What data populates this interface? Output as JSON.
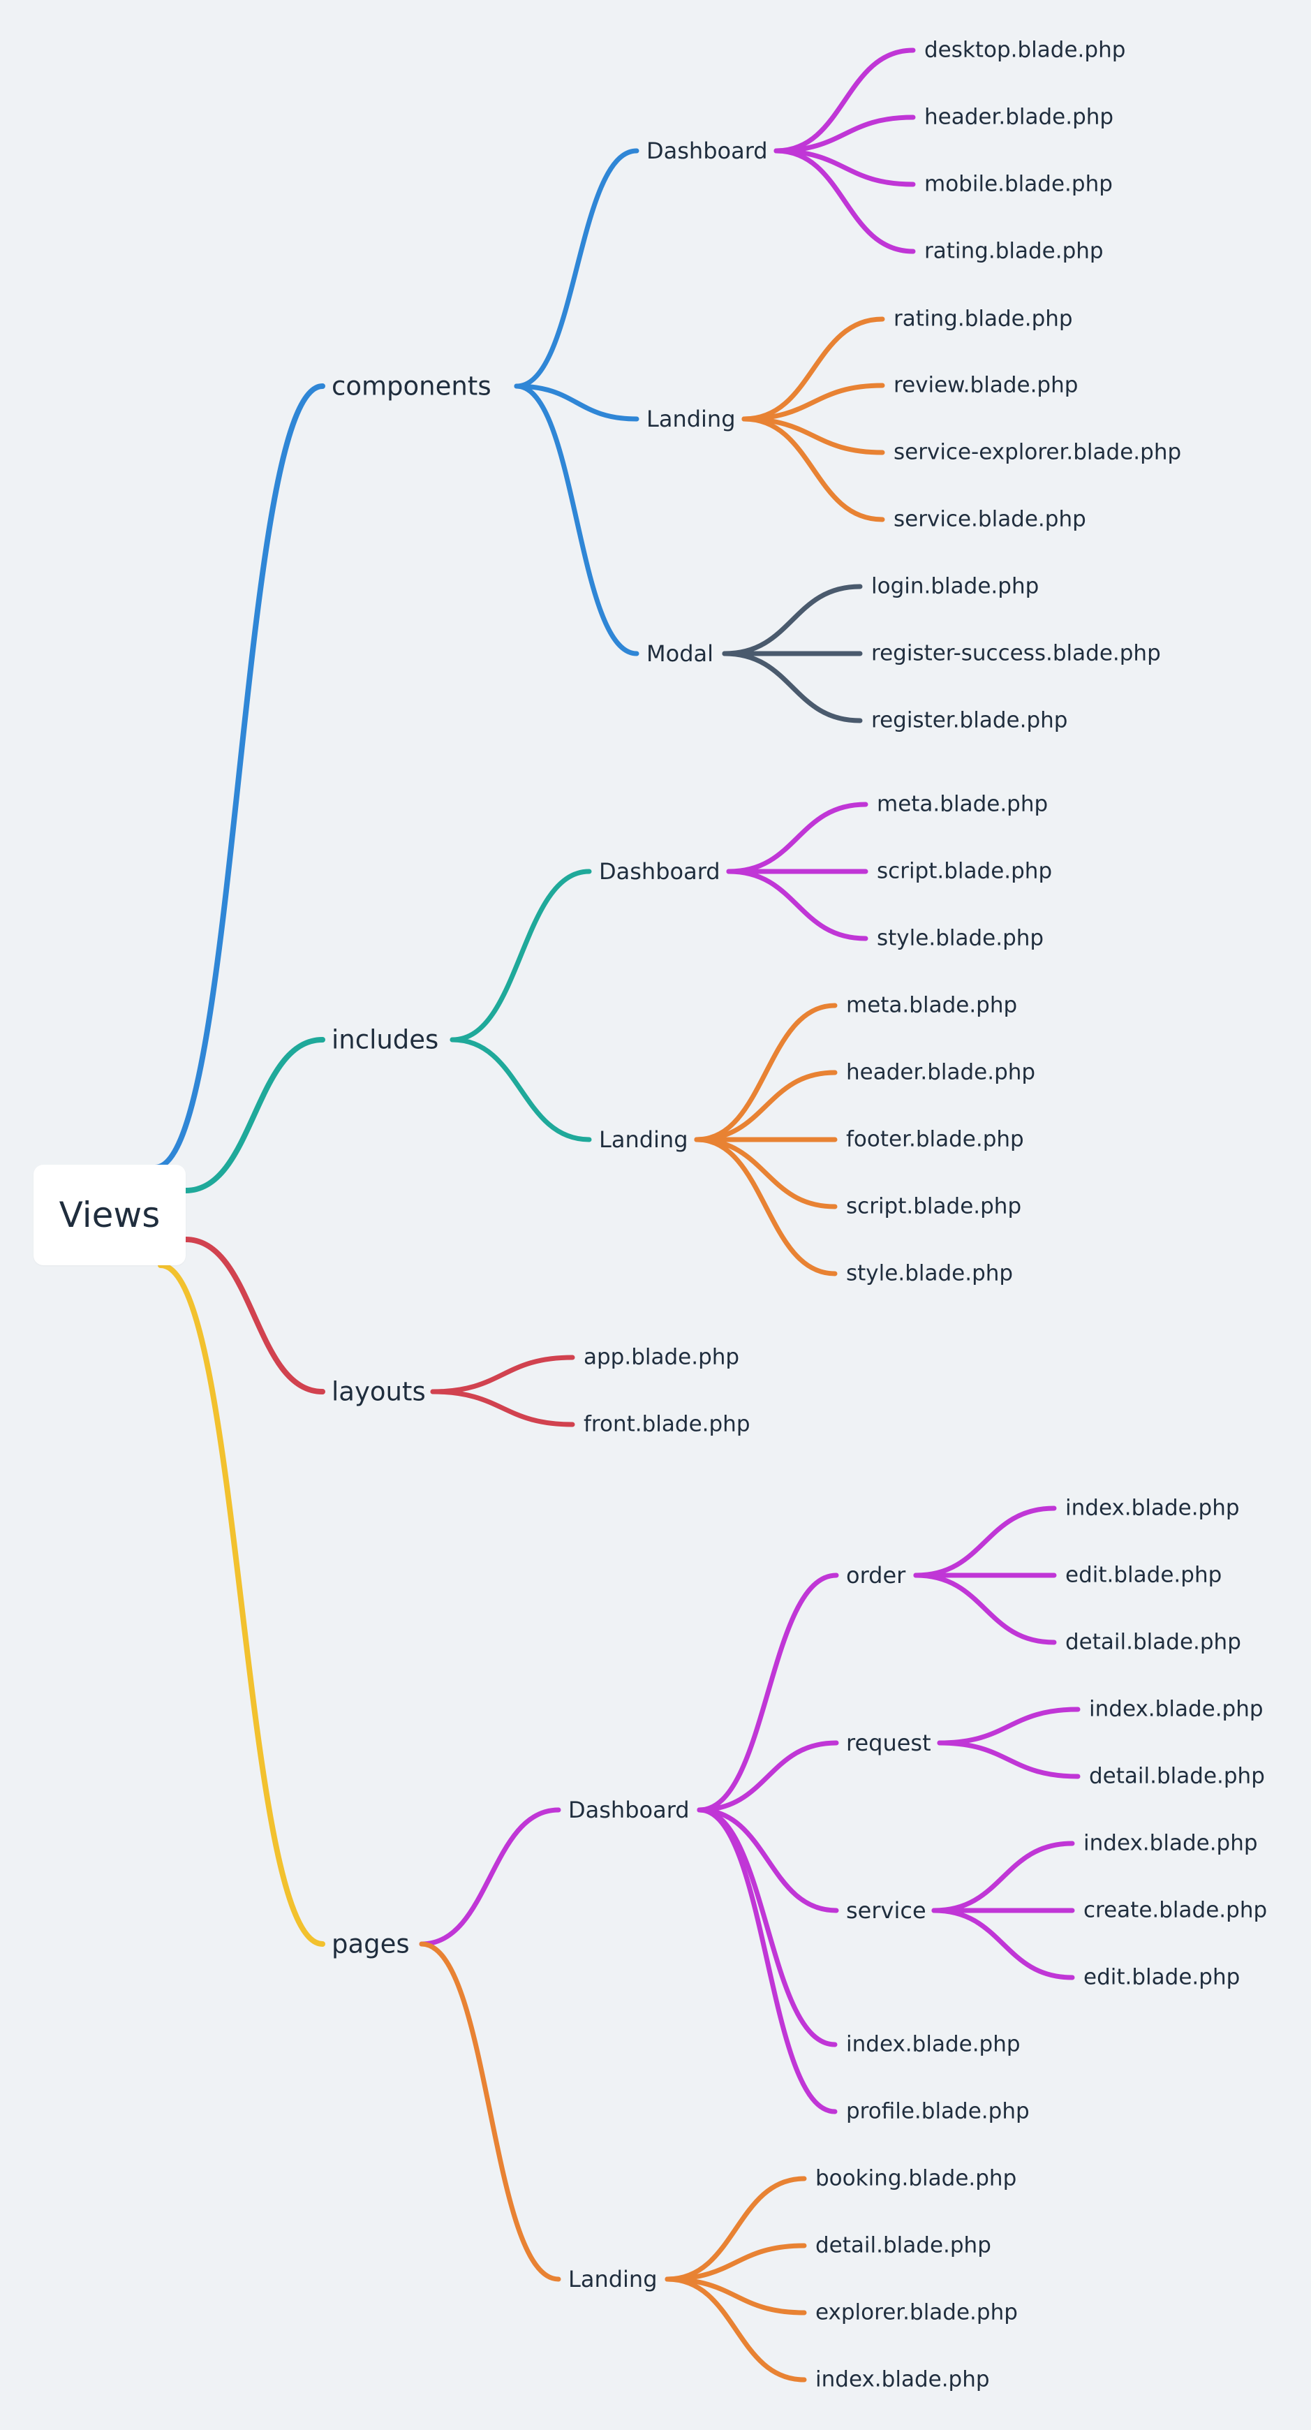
{
  "mindmap": {
    "root": "Views",
    "colors": {
      "components": "#2f86d6",
      "includes": "#1fa99a",
      "layouts": "#d1424f",
      "pages": "#f2c12e",
      "purple": "#c036d6",
      "orange": "#e88233",
      "slate": "#4a5a6d"
    },
    "branches": [
      {
        "label": "components",
        "color": "#2f86d6",
        "children": [
          {
            "label": "Dashboard",
            "color": "#c036d6",
            "children": [
              "desktop.blade.php",
              "header.blade.php",
              "mobile.blade.php",
              "rating.blade.php"
            ]
          },
          {
            "label": "Landing",
            "color": "#e88233",
            "children": [
              "rating.blade.php",
              "review.blade.php",
              "service-explorer.blade.php",
              "service.blade.php"
            ]
          },
          {
            "label": "Modal",
            "color": "#4a5a6d",
            "children": [
              "login.blade.php",
              "register-success.blade.php",
              "register.blade.php"
            ]
          }
        ]
      },
      {
        "label": "includes",
        "color": "#1fa99a",
        "children": [
          {
            "label": "Dashboard",
            "color": "#c036d6",
            "children": [
              "meta.blade.php",
              "script.blade.php",
              "style.blade.php"
            ]
          },
          {
            "label": "Landing",
            "color": "#e88233",
            "children": [
              "meta.blade.php",
              "header.blade.php",
              "footer.blade.php",
              "script.blade.php",
              "style.blade.php"
            ]
          }
        ]
      },
      {
        "label": "layouts",
        "color": "#d1424f",
        "children": [
          "app.blade.php",
          "front.blade.php"
        ]
      },
      {
        "label": "pages",
        "color": "#f2c12e",
        "children": [
          {
            "label": "Dashboard",
            "color": "#c036d6",
            "children": [
              {
                "label": "order",
                "children": [
                  "index.blade.php",
                  "edit.blade.php",
                  "detail.blade.php"
                ]
              },
              {
                "label": "request",
                "children": [
                  "index.blade.php",
                  "detail.blade.php"
                ]
              },
              {
                "label": "service",
                "children": [
                  "index.blade.php",
                  "create.blade.php",
                  "edit.blade.php"
                ]
              },
              "index.blade.php",
              "profile.blade.php"
            ]
          },
          {
            "label": "Landing",
            "color": "#e88233",
            "children": [
              "booking.blade.php",
              "detail.blade.php",
              "explorer.blade.php",
              "index.blade.php"
            ]
          }
        ]
      }
    ]
  }
}
